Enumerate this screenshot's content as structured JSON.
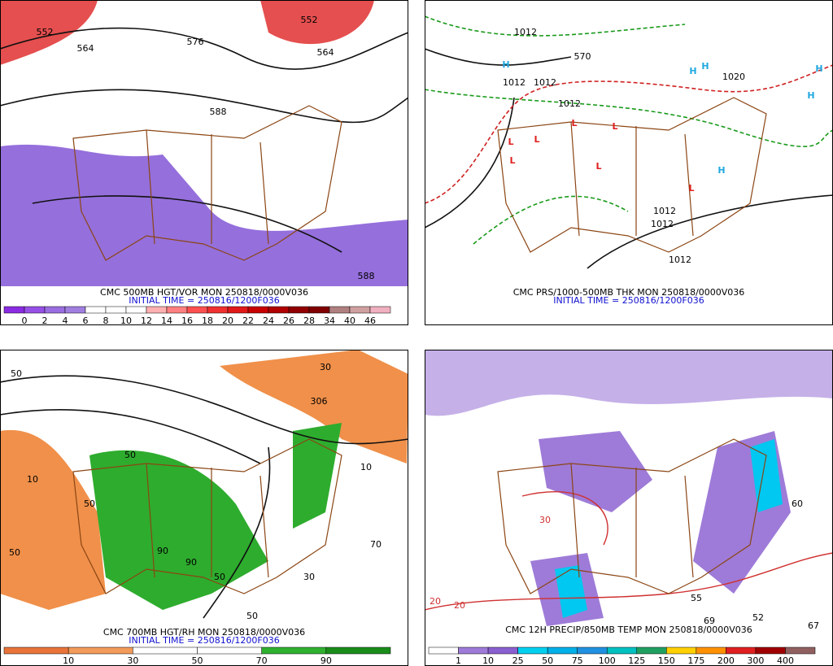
{
  "panels": [
    {
      "title": "CMC 500MB HGT/VOR MON 250818/0000V036",
      "initial_time": "INITIAL TIME = 250816/1200F036",
      "contour_labels": [
        "552",
        "552",
        "564",
        "564",
        "576",
        "588",
        "588"
      ],
      "colorbar": {
        "labels": [
          0,
          2,
          4,
          6,
          8,
          10,
          12,
          14,
          16,
          18,
          20,
          22,
          24,
          26,
          28,
          34,
          40,
          46
        ],
        "colors": [
          "#8a2be2",
          "#9650e6",
          "#9a6ee0",
          "#a07fe0",
          "#ffffff",
          "#ffffff",
          "#ffffff",
          "#ffb0b0",
          "#ff8080",
          "#ff5050",
          "#f03030",
          "#e01818",
          "#c80000",
          "#b00000",
          "#900000",
          "#800000",
          "#b08080",
          "#d0a0a0",
          "#f0b0c0"
        ]
      }
    },
    {
      "title": "CMC PRS/1000-500MB THK MON 250818/0000V036",
      "initial_time": "INITIAL TIME = 250816/1200F036",
      "contour_labels": [
        "1012",
        "1012",
        "1012",
        "1012",
        "570",
        "1020",
        "1012",
        "1012",
        "1012"
      ],
      "markers": [
        "H",
        "H",
        "H",
        "H",
        "H",
        "H",
        "L",
        "L",
        "L",
        "L",
        "L",
        "L",
        "L"
      ]
    },
    {
      "title": "CMC 700MB HGT/RH MON 250818/0000V036",
      "initial_time": "INITIAL TIME = 250816/1200F036",
      "contour_labels": [
        "50",
        "306",
        "30",
        "10",
        "50",
        "50",
        "90",
        "90",
        "50",
        "50",
        "30",
        "10",
        "50",
        "70"
      ],
      "colorbar": {
        "labels": [
          10,
          30,
          50,
          70,
          90
        ],
        "colors": [
          "#e8743a",
          "#f29b5a",
          "#ffffff",
          "#ffffff",
          "#30b030",
          "#1a8c1a"
        ]
      }
    },
    {
      "title": "CMC 12H PRECIP/850MB TEMP MON 250818/0000V036",
      "contour_labels": [
        "30",
        "20",
        "20",
        "69",
        "52",
        "67",
        "55",
        "60"
      ],
      "colorbar": {
        "labels": [
          1,
          10,
          25,
          50,
          75,
          100,
          125,
          150,
          175,
          200,
          300,
          400
        ],
        "colors": [
          "#ffffff",
          "#9e7bd8",
          "#8a5fd0",
          "#00d0f0",
          "#00b0e8",
          "#2090e0",
          "#00c0c0",
          "#20a060",
          "#ffd000",
          "#ff9000",
          "#e02020",
          "#a00000",
          "#906060"
        ]
      }
    }
  ]
}
